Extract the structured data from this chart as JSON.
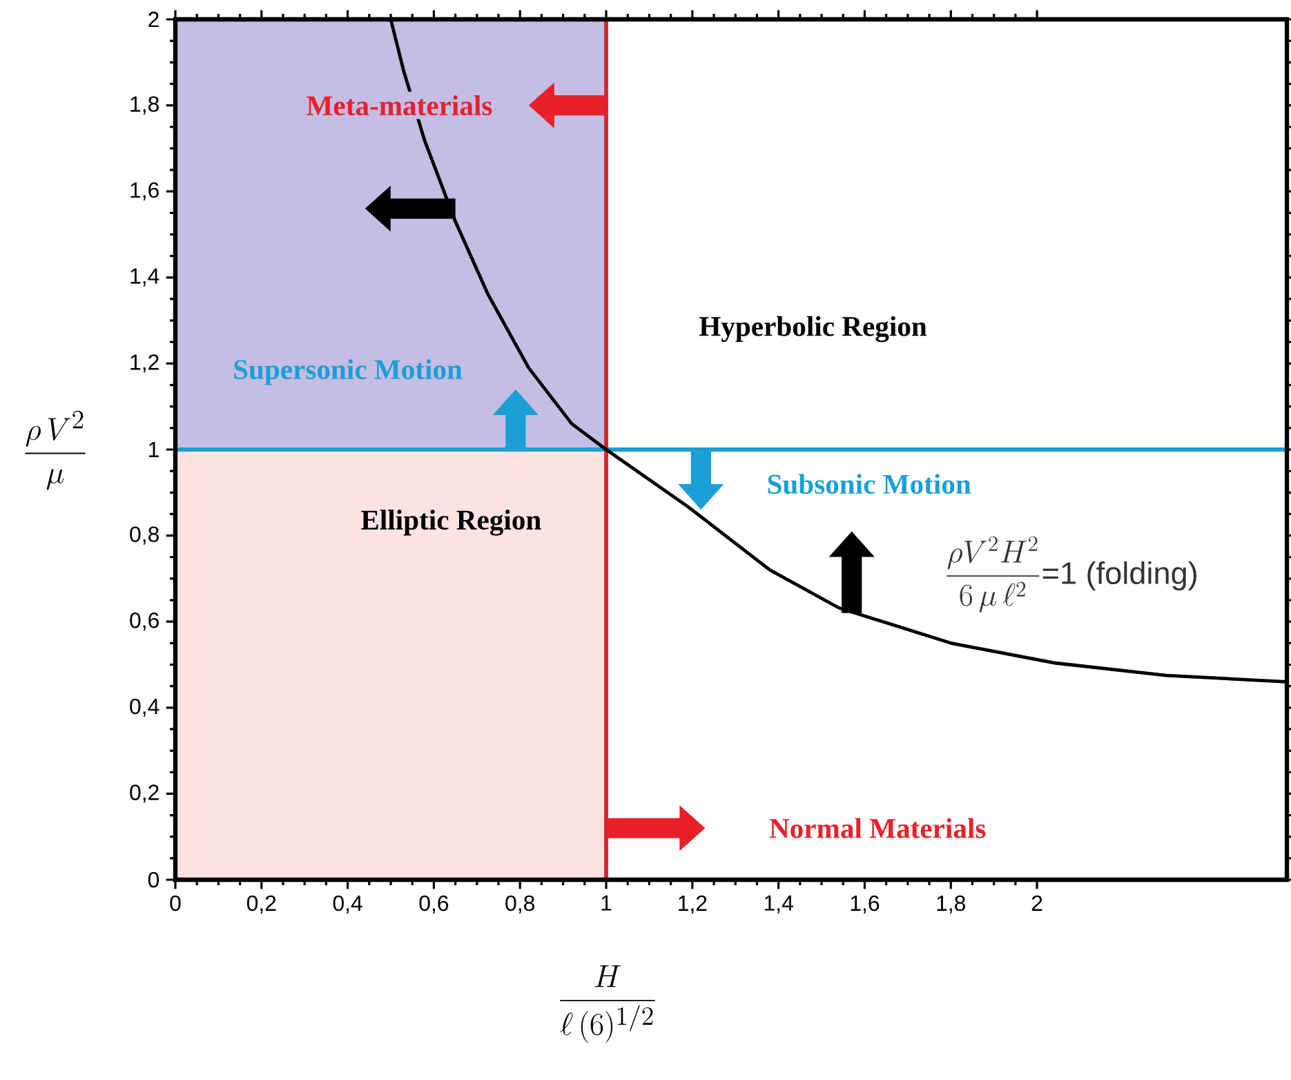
{
  "chart_data": {
    "type": "line",
    "xlabel": "\\frac{H}{\\ell\\,(6)^{1/2}}",
    "ylabel": "\\frac{\\rho\\, V^{2}}{\\mu}",
    "xlim": [
      0,
      2.58
    ],
    "ylim": [
      0,
      2
    ],
    "xticks": [
      0,
      {
        "value": 0.2,
        "label": "0,2"
      },
      {
        "value": 0.4,
        "label": "0,4"
      },
      {
        "value": 0.6,
        "label": "0,6"
      },
      {
        "value": 0.8,
        "label": "0,8"
      },
      1,
      {
        "value": 1.2,
        "label": "1,2"
      },
      {
        "value": 1.4,
        "label": "1,4"
      },
      {
        "value": 1.6,
        "label": "1,6"
      },
      {
        "value": 1.8,
        "label": "1,8"
      },
      2
    ],
    "yticks": [
      0,
      {
        "value": 0.2,
        "label": "0,2"
      },
      {
        "value": 0.4,
        "label": "0,4"
      },
      {
        "value": 0.6,
        "label": "0,6"
      },
      {
        "value": 0.8,
        "label": "0,8"
      },
      1,
      {
        "value": 1.2,
        "label": "1,2"
      },
      {
        "value": 1.4,
        "label": "1,4"
      },
      {
        "value": 1.6,
        "label": "1,6"
      },
      {
        "value": 1.8,
        "label": "1,8"
      },
      2
    ],
    "stacked": true,
    "series": [
      {
        "type": "area",
        "color": "#fde3e4",
        "x": [
          0,
          1
        ],
        "values": [
          1,
          1
        ]
      },
      {
        "type": "area",
        "color": "#c5bde3",
        "x": [
          0,
          1
        ],
        "values": [
          1,
          1
        ]
      },
      {
        "color": "#000000",
        "x": [
          0.5,
          0.53,
          0.578,
          0.65,
          0.726,
          0.82,
          0.92,
          1.0,
          1.19,
          1.38,
          1.54,
          1.8,
          2.04,
          2.3,
          2.58
        ],
        "values": [
          2.0,
          1.88,
          1.72,
          1.53,
          1.36,
          1.19,
          1.06,
          1.0,
          0.867,
          0.72,
          0.632,
          0.55,
          0.504,
          0.475,
          0.46
        ]
      }
    ],
    "ref_lines": [
      {
        "axis": "y",
        "value": 1,
        "color": "#1a9fd6"
      },
      {
        "axis": "x",
        "value": 1,
        "color": "#d9262d"
      }
    ],
    "annotations": [
      "Meta-materials",
      "Supersonic Motion",
      "Hyperbolic Region",
      "Elliptic Region",
      "Subsonic Motion",
      "Normal Materials",
      "\\frac{\\rho V^{2}H^{2}}{6\\,\\mu\\,\\ell^{2}}\\text{=1 (folding)}"
    ]
  }
}
